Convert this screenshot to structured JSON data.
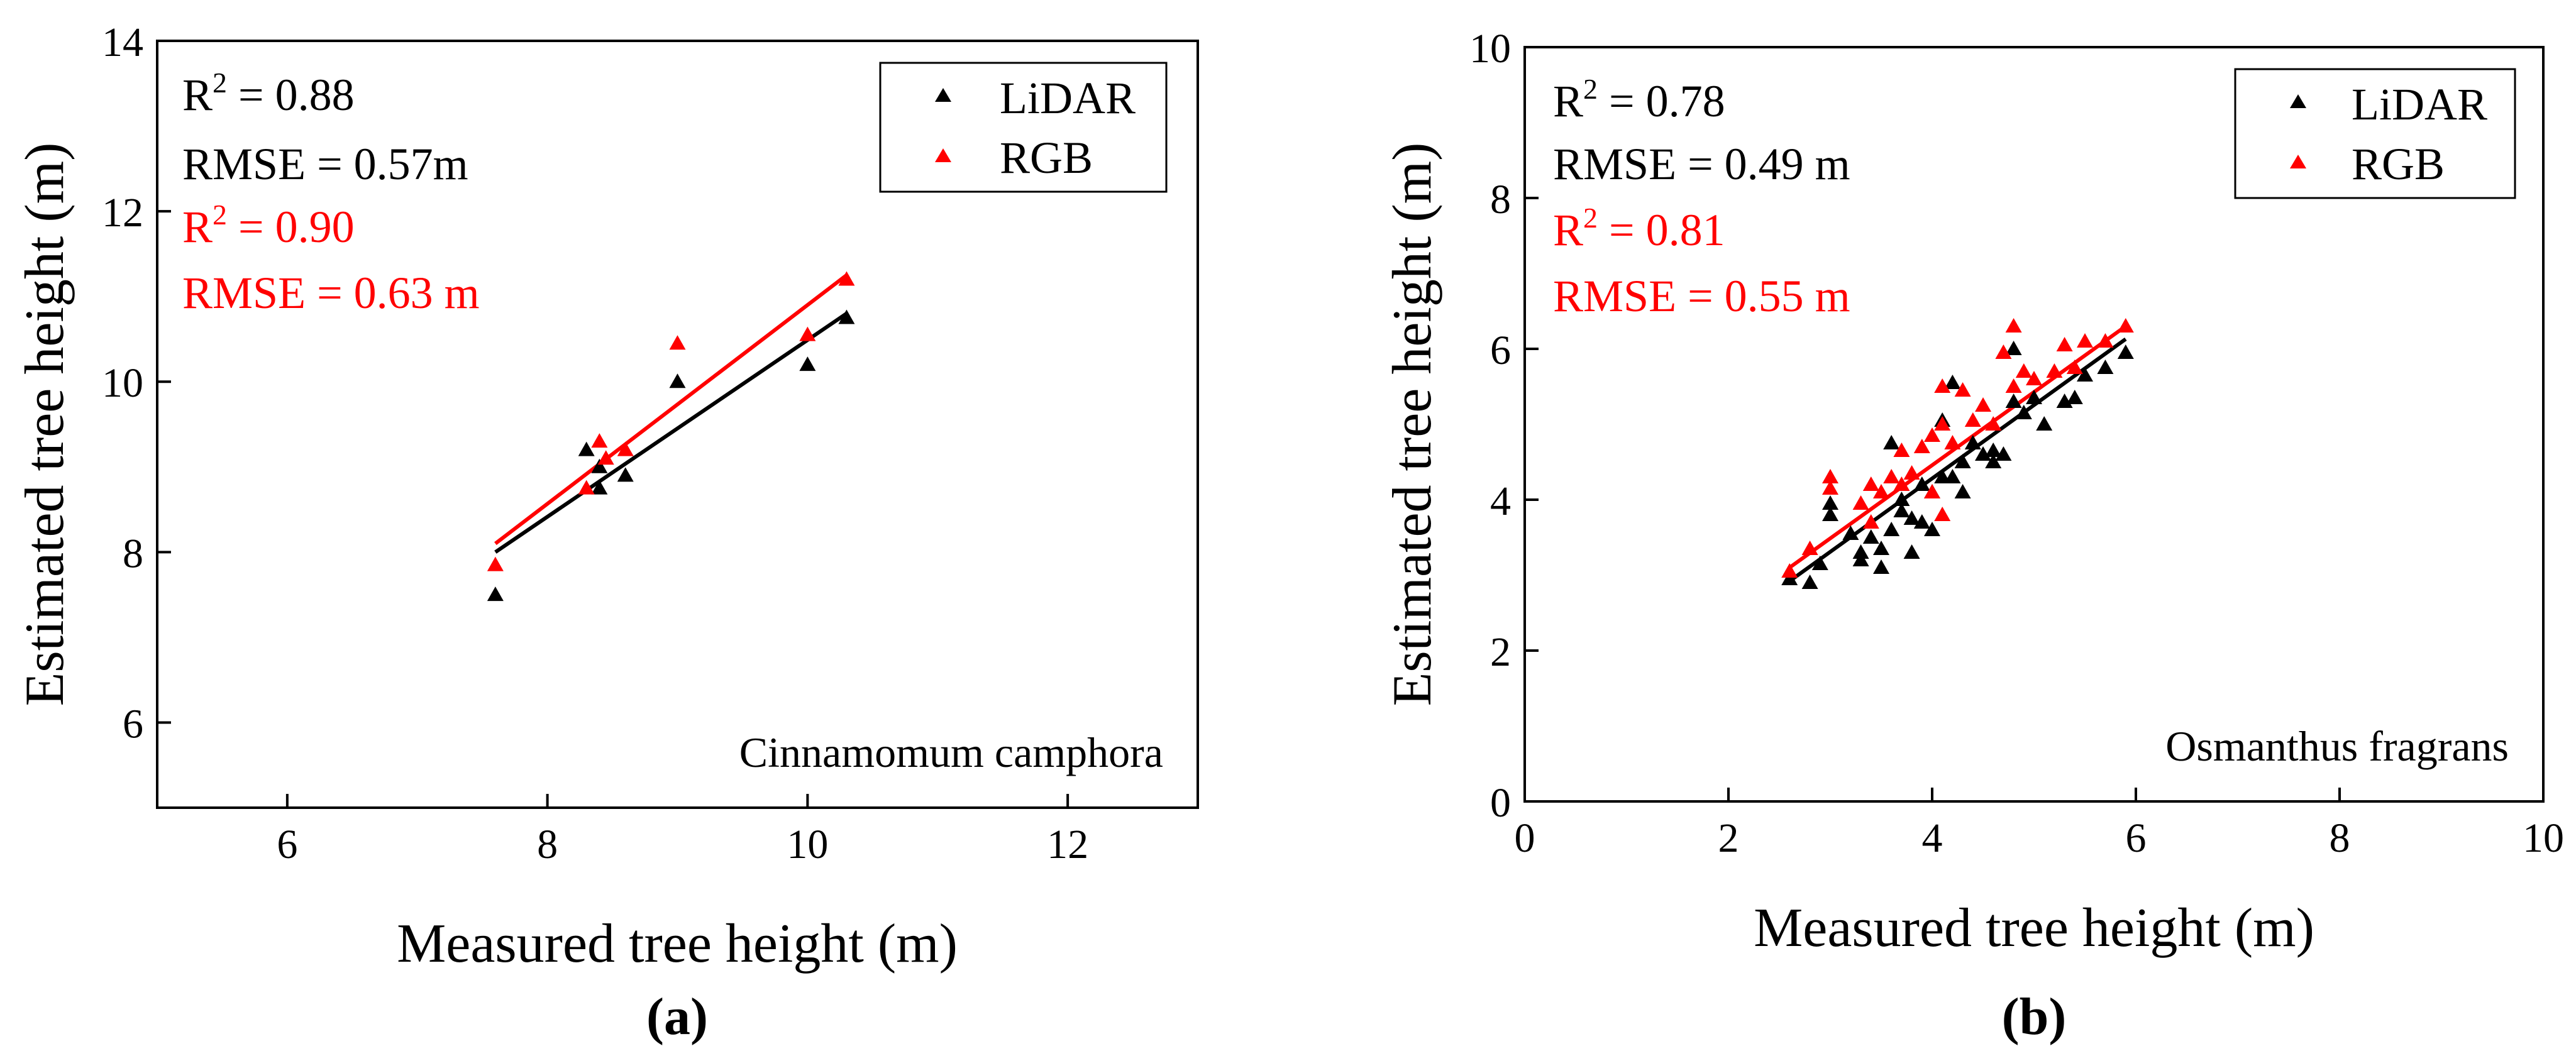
{
  "colors": {
    "lidar": "#000000",
    "rgb": "#ff0000",
    "axis": "#000000"
  },
  "chart_data": [
    {
      "type": "scatter",
      "panel_label": "(a)",
      "xlabel": "Measured tree height (m)",
      "ylabel": "Estimated tree height (m)",
      "xlim": [
        5,
        13
      ],
      "ylim": [
        5,
        14
      ],
      "xticks": [
        6,
        8,
        10,
        12
      ],
      "yticks": [
        6,
        8,
        10,
        12,
        14
      ],
      "xtick_labels": [
        "6",
        "8",
        "10",
        "12"
      ],
      "ytick_labels": [
        "6",
        "8",
        "10",
        "12",
        "14"
      ],
      "annotation": "Cinnamomum camphora",
      "legend": {
        "position": "top-right",
        "entries": [
          "LiDAR",
          "RGB"
        ]
      },
      "stats": [
        {
          "r2_prefix": "R",
          "r2_sup": "2",
          "r2_value": " = 0.88",
          "rmse": "RMSE = 0.57m",
          "color": "#000000"
        },
        {
          "r2_prefix": "R",
          "r2_sup": "2",
          "r2_value": " = 0.90",
          "rmse": "RMSE = 0.63 m",
          "color": "#ff0000"
        }
      ],
      "series": [
        {
          "name": "LiDAR",
          "color": "#000000",
          "points": [
            [
              7.6,
              7.5
            ],
            [
              8.3,
              9.2
            ],
            [
              8.4,
              8.75
            ],
            [
              8.4,
              9.0
            ],
            [
              8.6,
              8.9
            ],
            [
              9.0,
              10.0
            ],
            [
              10.0,
              10.2
            ],
            [
              10.3,
              10.75
            ]
          ],
          "fit": [
            [
              7.6,
              8.0
            ],
            [
              10.3,
              10.8
            ]
          ]
        },
        {
          "name": "RGB",
          "color": "#ff0000",
          "points": [
            [
              7.6,
              7.85
            ],
            [
              8.3,
              8.75
            ],
            [
              8.4,
              9.3
            ],
            [
              8.45,
              9.1
            ],
            [
              8.6,
              9.2
            ],
            [
              9.0,
              10.45
            ],
            [
              10.0,
              10.55
            ],
            [
              10.3,
              11.2
            ]
          ],
          "fit": [
            [
              7.6,
              8.1
            ],
            [
              10.3,
              11.25
            ]
          ]
        }
      ]
    },
    {
      "type": "scatter",
      "panel_label": "(b)",
      "xlabel": "Measured tree height (m)",
      "ylabel": "Estimated tree height (m)",
      "xlim": [
        0,
        10
      ],
      "ylim": [
        0,
        10
      ],
      "xticks": [
        0,
        2,
        4,
        6,
        8,
        10
      ],
      "yticks": [
        0,
        2,
        4,
        6,
        8,
        10
      ],
      "xtick_labels": [
        "0",
        "2",
        "4",
        "6",
        "8",
        "10"
      ],
      "ytick_labels": [
        "0",
        "2",
        "4",
        "6",
        "8",
        "10"
      ],
      "annotation": "Osmanthus fragrans",
      "legend": {
        "position": "top-right",
        "entries": [
          "LiDAR",
          "RGB"
        ]
      },
      "stats": [
        {
          "r2_prefix": "R",
          "r2_sup": "2",
          "r2_value": " = 0.78",
          "rmse": "RMSE = 0.49 m",
          "color": "#000000"
        },
        {
          "r2_prefix": "R",
          "r2_sup": "2",
          "r2_value": " = 0.81",
          "rmse": "RMSE = 0.55 m",
          "color": "#ff0000"
        }
      ],
      "series": [
        {
          "name": "LiDAR",
          "color": "#000000",
          "points": [
            [
              2.6,
              2.95
            ],
            [
              2.8,
              2.9
            ],
            [
              2.9,
              3.15
            ],
            [
              3.0,
              3.8
            ],
            [
              3.0,
              3.95
            ],
            [
              3.2,
              3.55
            ],
            [
              3.3,
              3.2
            ],
            [
              3.3,
              3.3
            ],
            [
              3.4,
              3.5
            ],
            [
              3.5,
              3.1
            ],
            [
              3.5,
              3.35
            ],
            [
              3.6,
              3.6
            ],
            [
              3.6,
              4.75
            ],
            [
              3.7,
              3.85
            ],
            [
              3.7,
              4.0
            ],
            [
              3.8,
              3.3
            ],
            [
              3.8,
              3.75
            ],
            [
              3.9,
              3.7
            ],
            [
              3.9,
              4.2
            ],
            [
              4.0,
              4.1
            ],
            [
              4.0,
              3.6
            ],
            [
              4.1,
              4.3
            ],
            [
              4.1,
              5.05
            ],
            [
              4.2,
              4.3
            ],
            [
              4.2,
              5.55
            ],
            [
              4.3,
              4.1
            ],
            [
              4.3,
              4.5
            ],
            [
              4.4,
              4.75
            ],
            [
              4.5,
              4.6
            ],
            [
              4.6,
              4.5
            ],
            [
              4.6,
              4.65
            ],
            [
              4.7,
              4.6
            ],
            [
              4.8,
              5.3
            ],
            [
              4.8,
              6.0
            ],
            [
              4.9,
              5.15
            ],
            [
              5.0,
              5.35
            ],
            [
              5.1,
              5.0
            ],
            [
              5.3,
              5.3
            ],
            [
              5.4,
              5.35
            ],
            [
              5.5,
              5.65
            ],
            [
              5.7,
              5.75
            ],
            [
              5.9,
              5.95
            ]
          ],
          "fit": [
            [
              2.6,
              2.92
            ],
            [
              5.9,
              6.13
            ]
          ]
        },
        {
          "name": "RGB",
          "color": "#ff0000",
          "points": [
            [
              2.6,
              3.05
            ],
            [
              2.8,
              3.35
            ],
            [
              3.0,
              4.15
            ],
            [
              3.0,
              4.3
            ],
            [
              3.3,
              3.95
            ],
            [
              3.4,
              4.2
            ],
            [
              3.4,
              3.7
            ],
            [
              3.5,
              4.1
            ],
            [
              3.6,
              4.3
            ],
            [
              3.7,
              4.2
            ],
            [
              3.7,
              4.65
            ],
            [
              3.8,
              4.35
            ],
            [
              3.9,
              4.7
            ],
            [
              4.0,
              4.85
            ],
            [
              4.0,
              4.1
            ],
            [
              4.1,
              3.8
            ],
            [
              4.1,
              5.0
            ],
            [
              4.1,
              5.5
            ],
            [
              4.2,
              4.75
            ],
            [
              4.3,
              5.45
            ],
            [
              4.4,
              5.05
            ],
            [
              4.5,
              5.25
            ],
            [
              4.6,
              5.0
            ],
            [
              4.7,
              5.95
            ],
            [
              4.8,
              5.5
            ],
            [
              4.8,
              6.3
            ],
            [
              4.9,
              5.7
            ],
            [
              5.0,
              5.6
            ],
            [
              5.2,
              5.7
            ],
            [
              5.3,
              6.05
            ],
            [
              5.4,
              5.75
            ],
            [
              5.5,
              6.1
            ],
            [
              5.7,
              6.1
            ],
            [
              5.9,
              6.3
            ]
          ],
          "fit": [
            [
              2.6,
              3.1
            ],
            [
              5.9,
              6.3
            ]
          ]
        }
      ]
    }
  ]
}
